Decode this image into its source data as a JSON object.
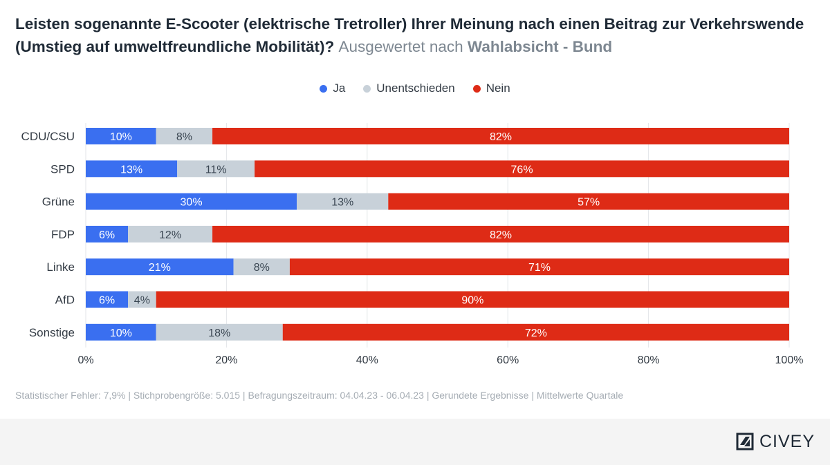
{
  "title": {
    "main": "Leisten sogenannte E-Scooter (elektrische Tretroller) Ihrer Meinung nach einen Beitrag zur Verkehrswende (Umstieg auf umweltfreundliche Mobilität)?",
    "sub_prefix": "Ausgewertet nach",
    "sub_bold": "Wahlabsicht - Bund"
  },
  "legend": [
    {
      "label": "Ja",
      "color": "#3a6ff0"
    },
    {
      "label": "Unentschieden",
      "color": "#c8d1d9"
    },
    {
      "label": "Nein",
      "color": "#de2b16"
    }
  ],
  "chart_data": {
    "type": "bar",
    "orientation": "horizontal",
    "stacked": true,
    "categories": [
      "CDU/CSU",
      "SPD",
      "Grüne",
      "FDP",
      "Linke",
      "AfD",
      "Sonstige"
    ],
    "series": [
      {
        "name": "Ja",
        "color": "#3a6ff0",
        "label_color": "#ffffff",
        "values": [
          10,
          13,
          30,
          6,
          21,
          6,
          10
        ]
      },
      {
        "name": "Unentschieden",
        "color": "#c8d1d9",
        "label_color": "#3a4652",
        "values": [
          8,
          11,
          13,
          12,
          8,
          4,
          18
        ]
      },
      {
        "name": "Nein",
        "color": "#de2b16",
        "label_color": "#ffffff",
        "values": [
          82,
          76,
          57,
          82,
          71,
          90,
          72
        ]
      }
    ],
    "xlim": [
      0,
      100
    ],
    "xticks": [
      "0%",
      "20%",
      "40%",
      "60%",
      "80%",
      "100%"
    ],
    "tick_values": [
      0,
      20,
      40,
      60,
      80,
      100
    ],
    "value_suffix": "%",
    "grid": true
  },
  "footnote": "Statistischer Fehler: 7,9% | Stichprobengröße: 5.015 | Befragungszeitraum: 04.04.23 - 06.04.23 | Gerundete Ergebnisse | Mittelwerte Quartale",
  "brand": {
    "name": "CIVEY"
  }
}
